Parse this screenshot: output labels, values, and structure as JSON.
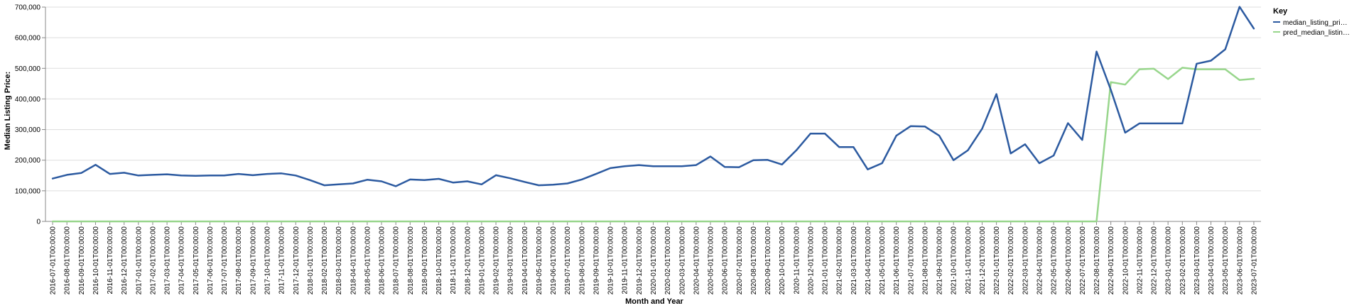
{
  "chart_data": {
    "type": "line",
    "xlabel": "Month and Year",
    "ylabel": "Median Listing Price:",
    "ylim": [
      0,
      700000
    ],
    "y_ticks": [
      "0",
      "100,000",
      "200,000",
      "300,000",
      "400,000",
      "500,000",
      "600,000",
      "700,000"
    ],
    "grid": "horizontal",
    "legend": {
      "title": "Key",
      "placement": "top-right",
      "entries": [
        {
          "label": "median_listing_pri…",
          "color": "#2c5aa0"
        },
        {
          "label": "pred_median_listin…",
          "color": "#98d68c"
        }
      ]
    },
    "categories": [
      "2016-07-01T00:00:00",
      "2016-08-01T00:00:00",
      "2016-09-01T00:00:00",
      "2016-10-01T00:00:00",
      "2016-11-01T00:00:00",
      "2016-12-01T00:00:00",
      "2017-01-01T00:00:00",
      "2017-02-01T00:00:00",
      "2017-03-01T00:00:00",
      "2017-04-01T00:00:00",
      "2017-05-01T00:00:00",
      "2017-06-01T00:00:00",
      "2017-07-01T00:00:00",
      "2017-08-01T00:00:00",
      "2017-09-01T00:00:00",
      "2017-10-01T00:00:00",
      "2017-11-01T00:00:00",
      "2017-12-01T00:00:00",
      "2018-01-01T00:00:00",
      "2018-02-01T00:00:00",
      "2018-03-01T00:00:00",
      "2018-04-01T00:00:00",
      "2018-05-01T00:00:00",
      "2018-06-01T00:00:00",
      "2018-07-01T00:00:00",
      "2018-08-01T00:00:00",
      "2018-09-01T00:00:00",
      "2018-10-01T00:00:00",
      "2018-11-01T00:00:00",
      "2018-12-01T00:00:00",
      "2019-01-01T00:00:00",
      "2019-02-01T00:00:00",
      "2019-03-01T00:00:00",
      "2019-04-01T00:00:00",
      "2019-05-01T00:00:00",
      "2019-06-01T00:00:00",
      "2019-07-01T00:00:00",
      "2019-08-01T00:00:00",
      "2019-09-01T00:00:00",
      "2019-10-01T00:00:00",
      "2019-11-01T00:00:00",
      "2019-12-01T00:00:00",
      "2020-01-01T00:00:00",
      "2020-02-01T00:00:00",
      "2020-03-01T00:00:00",
      "2020-04-01T00:00:00",
      "2020-05-01T00:00:00",
      "2020-06-01T00:00:00",
      "2020-07-01T00:00:00",
      "2020-08-01T00:00:00",
      "2020-09-01T00:00:00",
      "2020-10-01T00:00:00",
      "2020-11-01T00:00:00",
      "2020-12-01T00:00:00",
      "2021-01-01T00:00:00",
      "2021-02-01T00:00:00",
      "2021-03-01T00:00:00",
      "2021-04-01T00:00:00",
      "2021-05-01T00:00:00",
      "2021-06-01T00:00:00",
      "2021-07-01T00:00:00",
      "2021-08-01T00:00:00",
      "2021-09-01T00:00:00",
      "2021-10-01T00:00:00",
      "2021-11-01T00:00:00",
      "2021-12-01T00:00:00",
      "2022-01-01T00:00:00",
      "2022-02-01T00:00:00",
      "2022-03-01T00:00:00",
      "2022-04-01T00:00:00",
      "2022-05-01T00:00:00",
      "2022-06-01T00:00:00",
      "2022-07-01T00:00:00",
      "2022-08-01T00:00:00",
      "2022-09-01T00:00:00",
      "2022-10-01T00:00:00",
      "2022-11-01T00:00:00",
      "2022-12-01T00:00:00",
      "2023-01-01T00:00:00",
      "2023-02-01T00:00:00",
      "2023-03-01T00:00:00",
      "2023-04-01T00:00:00",
      "2023-05-01T00:00:00",
      "2023-06-01T00:00:00",
      "2023-07-01T00:00:00"
    ],
    "series": [
      {
        "name": "median_listing_pri…",
        "color": "#2c5aa0",
        "values": [
          140000,
          152000,
          158000,
          185000,
          155000,
          159000,
          150000,
          152000,
          154000,
          150000,
          149000,
          150000,
          150000,
          155000,
          151000,
          155000,
          157000,
          150000,
          135000,
          118000,
          121000,
          124000,
          136000,
          131000,
          115000,
          137000,
          135000,
          139000,
          127000,
          131000,
          121000,
          151000,
          141000,
          129000,
          118000,
          120000,
          124000,
          137000,
          155000,
          174000,
          180000,
          184000,
          180000,
          180000,
          180000,
          184000,
          212000,
          178000,
          177000,
          200000,
          201000,
          186000,
          232000,
          287000,
          287000,
          243000,
          243000,
          170000,
          190000,
          280000,
          311000,
          310000,
          280000,
          200000,
          232000,
          303000,
          416000,
          222000,
          252000,
          190000,
          215000,
          321000,
          266000,
          555000,
          430000,
          290000,
          320000,
          320000,
          320000,
          320000,
          515000,
          525000,
          562000,
          701000,
          630000
        ]
      },
      {
        "name": "pred_median_listin…",
        "color": "#98d68c",
        "values": [
          0,
          0,
          0,
          0,
          0,
          0,
          0,
          0,
          0,
          0,
          0,
          0,
          0,
          0,
          0,
          0,
          0,
          0,
          0,
          0,
          0,
          0,
          0,
          0,
          0,
          0,
          0,
          0,
          0,
          0,
          0,
          0,
          0,
          0,
          0,
          0,
          0,
          0,
          0,
          0,
          0,
          0,
          0,
          0,
          0,
          0,
          0,
          0,
          0,
          0,
          0,
          0,
          0,
          0,
          0,
          0,
          0,
          0,
          0,
          0,
          0,
          0,
          0,
          0,
          0,
          0,
          0,
          0,
          0,
          0,
          0,
          0,
          0,
          0,
          455000,
          447000,
          497000,
          499000,
          465000,
          502000,
          497000,
          497000,
          497000,
          462000,
          466000
        ]
      }
    ]
  }
}
